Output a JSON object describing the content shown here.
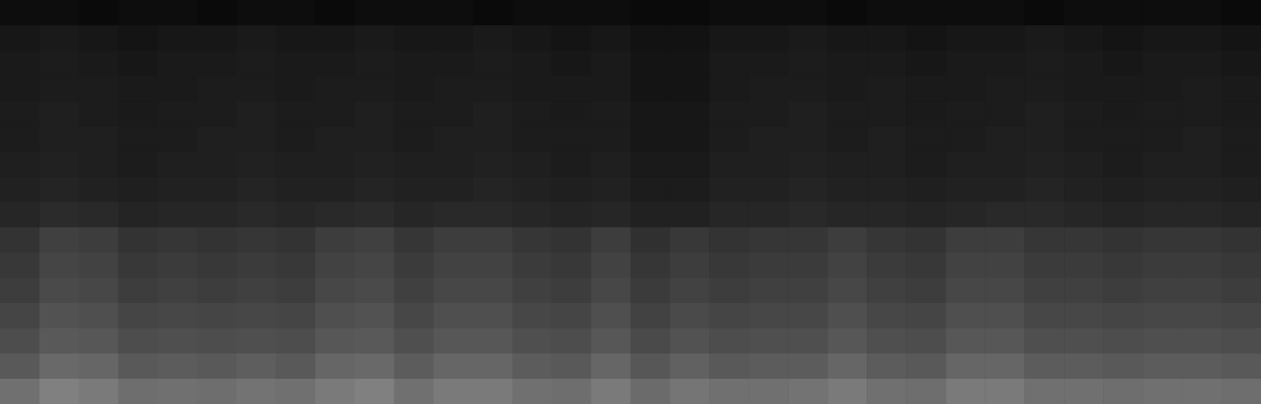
{
  "chart_data": {
    "type": "heatmap",
    "tick_labels": false,
    "zlim": [
      0,
      1
    ],
    "cells": [
      [
        0.05,
        0.05,
        0.04,
        0.05,
        0.05,
        0.04,
        0.05,
        0.05,
        0.04,
        0.05,
        0.05,
        0.05,
        0.04,
        0.05,
        0.05,
        0.05,
        0.04,
        0.04,
        0.05,
        0.05,
        0.05,
        0.04,
        0.05,
        0.05,
        0.05,
        0.05,
        0.04,
        0.05,
        0.05,
        0.05,
        0.05,
        0.04
      ],
      [
        0.09,
        0.1,
        0.09,
        0.08,
        0.09,
        0.09,
        0.1,
        0.09,
        0.09,
        0.1,
        0.09,
        0.09,
        0.1,
        0.09,
        0.08,
        0.09,
        0.07,
        0.07,
        0.09,
        0.09,
        0.1,
        0.09,
        0.09,
        0.08,
        0.09,
        0.09,
        0.1,
        0.09,
        0.08,
        0.09,
        0.09,
        0.08
      ],
      [
        0.1,
        0.11,
        0.1,
        0.09,
        0.1,
        0.1,
        0.11,
        0.1,
        0.1,
        0.11,
        0.1,
        0.1,
        0.11,
        0.1,
        0.09,
        0.1,
        0.08,
        0.08,
        0.1,
        0.1,
        0.11,
        0.1,
        0.1,
        0.09,
        0.1,
        0.1,
        0.11,
        0.1,
        0.09,
        0.1,
        0.1,
        0.09
      ],
      [
        0.1,
        0.11,
        0.11,
        0.1,
        0.1,
        0.11,
        0.11,
        0.1,
        0.11,
        0.11,
        0.1,
        0.11,
        0.11,
        0.1,
        0.1,
        0.1,
        0.08,
        0.08,
        0.1,
        0.11,
        0.11,
        0.1,
        0.11,
        0.1,
        0.1,
        0.11,
        0.11,
        0.1,
        0.1,
        0.1,
        0.11,
        0.1
      ],
      [
        0.11,
        0.12,
        0.11,
        0.1,
        0.11,
        0.11,
        0.12,
        0.11,
        0.11,
        0.12,
        0.11,
        0.11,
        0.12,
        0.11,
        0.1,
        0.11,
        0.09,
        0.09,
        0.11,
        0.11,
        0.12,
        0.11,
        0.11,
        0.1,
        0.11,
        0.11,
        0.12,
        0.11,
        0.1,
        0.11,
        0.11,
        0.1
      ],
      [
        0.11,
        0.12,
        0.12,
        0.11,
        0.11,
        0.12,
        0.12,
        0.11,
        0.12,
        0.12,
        0.11,
        0.12,
        0.12,
        0.11,
        0.11,
        0.11,
        0.09,
        0.09,
        0.11,
        0.12,
        0.12,
        0.11,
        0.12,
        0.11,
        0.11,
        0.12,
        0.12,
        0.11,
        0.11,
        0.11,
        0.12,
        0.11
      ],
      [
        0.12,
        0.13,
        0.12,
        0.11,
        0.12,
        0.12,
        0.13,
        0.12,
        0.12,
        0.13,
        0.12,
        0.12,
        0.13,
        0.12,
        0.11,
        0.12,
        0.1,
        0.1,
        0.12,
        0.12,
        0.13,
        0.12,
        0.12,
        0.11,
        0.12,
        0.12,
        0.13,
        0.12,
        0.11,
        0.12,
        0.12,
        0.11
      ],
      [
        0.13,
        0.14,
        0.13,
        0.12,
        0.13,
        0.13,
        0.14,
        0.13,
        0.13,
        0.14,
        0.13,
        0.13,
        0.14,
        0.13,
        0.12,
        0.13,
        0.11,
        0.11,
        0.13,
        0.13,
        0.14,
        0.13,
        0.13,
        0.12,
        0.13,
        0.13,
        0.14,
        0.13,
        0.12,
        0.13,
        0.13,
        0.12
      ],
      [
        0.15,
        0.17,
        0.16,
        0.14,
        0.15,
        0.15,
        0.16,
        0.15,
        0.16,
        0.17,
        0.15,
        0.16,
        0.16,
        0.15,
        0.14,
        0.15,
        0.13,
        0.13,
        0.15,
        0.15,
        0.16,
        0.15,
        0.15,
        0.14,
        0.15,
        0.16,
        0.16,
        0.15,
        0.14,
        0.15,
        0.15,
        0.14
      ],
      [
        0.2,
        0.25,
        0.24,
        0.2,
        0.21,
        0.2,
        0.21,
        0.2,
        0.24,
        0.25,
        0.21,
        0.24,
        0.24,
        0.21,
        0.2,
        0.24,
        0.19,
        0.22,
        0.2,
        0.21,
        0.21,
        0.24,
        0.21,
        0.2,
        0.24,
        0.24,
        0.21,
        0.21,
        0.2,
        0.21,
        0.21,
        0.2
      ],
      [
        0.22,
        0.27,
        0.26,
        0.22,
        0.23,
        0.22,
        0.23,
        0.22,
        0.26,
        0.27,
        0.23,
        0.26,
        0.26,
        0.23,
        0.22,
        0.26,
        0.21,
        0.24,
        0.22,
        0.23,
        0.23,
        0.26,
        0.23,
        0.22,
        0.26,
        0.26,
        0.23,
        0.23,
        0.22,
        0.23,
        0.23,
        0.22
      ],
      [
        0.24,
        0.29,
        0.28,
        0.24,
        0.25,
        0.24,
        0.25,
        0.24,
        0.28,
        0.29,
        0.25,
        0.28,
        0.28,
        0.25,
        0.24,
        0.28,
        0.23,
        0.26,
        0.24,
        0.25,
        0.25,
        0.28,
        0.25,
        0.24,
        0.28,
        0.28,
        0.25,
        0.25,
        0.24,
        0.25,
        0.25,
        0.24
      ],
      [
        0.27,
        0.32,
        0.31,
        0.27,
        0.28,
        0.27,
        0.28,
        0.27,
        0.31,
        0.32,
        0.28,
        0.31,
        0.31,
        0.28,
        0.27,
        0.31,
        0.26,
        0.29,
        0.27,
        0.28,
        0.28,
        0.31,
        0.28,
        0.27,
        0.31,
        0.31,
        0.28,
        0.28,
        0.27,
        0.28,
        0.28,
        0.27
      ],
      [
        0.3,
        0.35,
        0.34,
        0.3,
        0.31,
        0.3,
        0.31,
        0.3,
        0.34,
        0.35,
        0.31,
        0.34,
        0.34,
        0.31,
        0.3,
        0.34,
        0.29,
        0.32,
        0.3,
        0.31,
        0.31,
        0.34,
        0.31,
        0.3,
        0.34,
        0.34,
        0.31,
        0.31,
        0.3,
        0.31,
        0.31,
        0.3
      ],
      [
        0.35,
        0.41,
        0.4,
        0.35,
        0.36,
        0.35,
        0.37,
        0.35,
        0.4,
        0.41,
        0.36,
        0.4,
        0.4,
        0.36,
        0.35,
        0.4,
        0.34,
        0.38,
        0.35,
        0.36,
        0.36,
        0.4,
        0.36,
        0.35,
        0.4,
        0.4,
        0.36,
        0.36,
        0.35,
        0.36,
        0.36,
        0.35
      ],
      [
        0.44,
        0.5,
        0.48,
        0.43,
        0.44,
        0.43,
        0.45,
        0.44,
        0.48,
        0.5,
        0.44,
        0.48,
        0.48,
        0.44,
        0.43,
        0.48,
        0.42,
        0.46,
        0.44,
        0.44,
        0.45,
        0.48,
        0.44,
        0.43,
        0.48,
        0.48,
        0.44,
        0.44,
        0.43,
        0.44,
        0.44,
        0.43
      ]
    ]
  }
}
